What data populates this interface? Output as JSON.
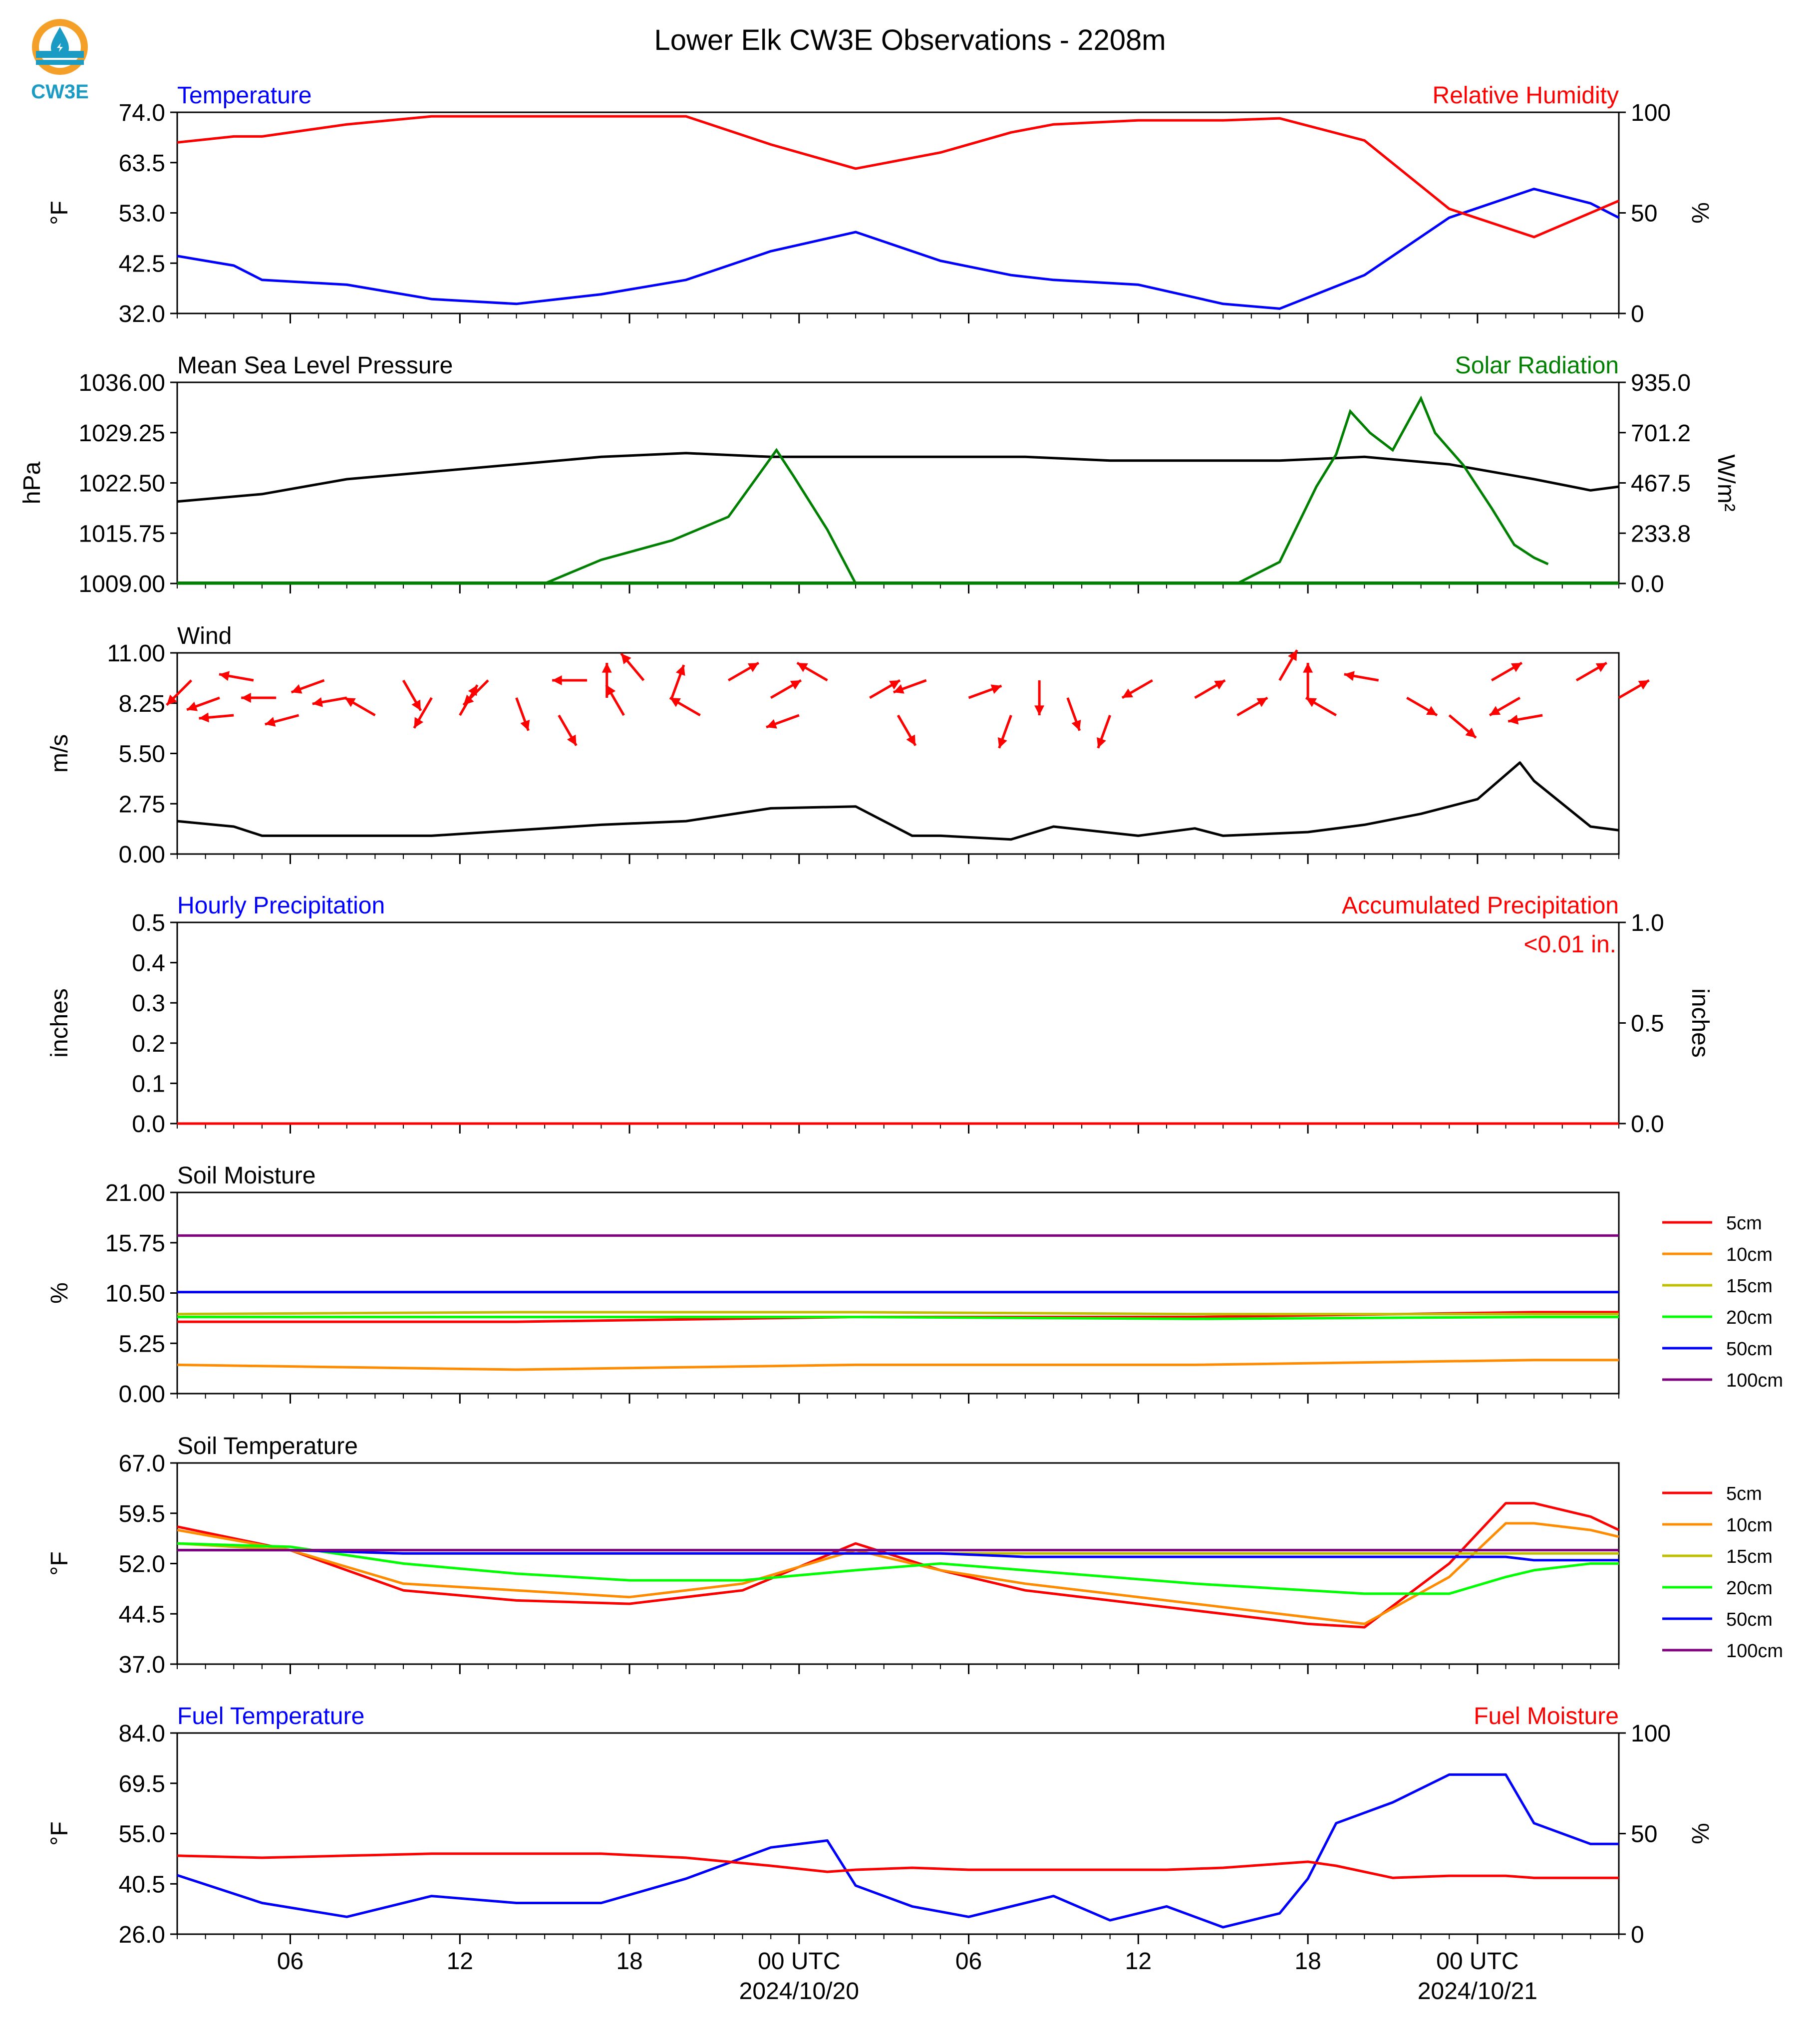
{
  "title": "Lower Elk CW3E Observations - 2208m",
  "logo_text": "CW3E",
  "x_axis": {
    "ticks": [
      "06",
      "12",
      "18",
      "00 UTC",
      "06",
      "12",
      "18",
      "00 UTC"
    ],
    "dates": [
      "2024/10/20",
      "2024/10/21"
    ]
  },
  "colors": {
    "blue": "#0000ff",
    "red": "#ff0000",
    "green": "#008000",
    "black": "#000000",
    "orange": "#ff8c00",
    "olive": "#bfbf00",
    "lime": "#00ff00",
    "purple": "#800080"
  },
  "chart_data": [
    {
      "type": "line",
      "title_left": "Temperature",
      "title_right": "Relative Humidity",
      "ylabel_left": "°F",
      "ylabel_right": "%",
      "left_ticks": [
        "74.0",
        "63.5",
        "53.0",
        "42.5",
        "32.0"
      ],
      "ylim_left": [
        32.0,
        74.0
      ],
      "right_ticks": [
        "100",
        "50",
        "0"
      ],
      "ylim_right": [
        0,
        100
      ],
      "x_hours": [
        0,
        2,
        3,
        6,
        9,
        12,
        15,
        18,
        21,
        24,
        27,
        29.5,
        31,
        34,
        37,
        39,
        42,
        45,
        48,
        50,
        51
      ],
      "series": [
        {
          "axis": "left",
          "color": "blue",
          "values": [
            44,
            42,
            39,
            38,
            35,
            34,
            36,
            39,
            45,
            49,
            43,
            40,
            39,
            38,
            34,
            33,
            40,
            52,
            58,
            55,
            52
          ]
        },
        {
          "axis": "right",
          "color": "red",
          "values": [
            85,
            88,
            88,
            94,
            98,
            98,
            98,
            98,
            84,
            72,
            80,
            90,
            94,
            96,
            96,
            97,
            86,
            52,
            38,
            50,
            56
          ]
        }
      ]
    },
    {
      "type": "line",
      "title_left": "Mean Sea Level Pressure",
      "title_right": "Solar Radiation",
      "ylabel_left": "hPa",
      "ylabel_right": "W/m²",
      "left_ticks": [
        "1036.00",
        "1029.25",
        "1022.50",
        "1015.75",
        "1009.00"
      ],
      "ylim_left": [
        1009.0,
        1036.0
      ],
      "right_ticks": [
        "935.0",
        "701.2",
        "467.5",
        "233.8",
        "0.0"
      ],
      "ylim_right": [
        0,
        935
      ],
      "x_hours": [
        0,
        3,
        6,
        9,
        12,
        15,
        18,
        21,
        24,
        27,
        30,
        33,
        36,
        39,
        42,
        45,
        48,
        50,
        51
      ],
      "series": [
        {
          "axis": "left",
          "color": "black",
          "values": [
            1020,
            1021,
            1023,
            1024,
            1025,
            1026,
            1026.5,
            1026,
            1026,
            1026,
            1026,
            1025.5,
            1025.5,
            1025.5,
            1026,
            1025,
            1023,
            1021.5,
            1022
          ]
        },
        {
          "axis": "right",
          "color": "green",
          "values": [
            0,
            0,
            0,
            0,
            0,
            0,
            0,
            0,
            0,
            0,
            0,
            0,
            0,
            0,
            0,
            0,
            0,
            0,
            0
          ]
        }
      ],
      "solar_points": [
        [
          13.0,
          0
        ],
        [
          15.0,
          110
        ],
        [
          17.5,
          200
        ],
        [
          19.5,
          310
        ],
        [
          21.2,
          620
        ],
        [
          21.8,
          500
        ],
        [
          23.0,
          250
        ],
        [
          24.0,
          0
        ],
        [
          37.5,
          0
        ],
        [
          39.0,
          100
        ],
        [
          40.3,
          450
        ],
        [
          41.0,
          600
        ],
        [
          41.5,
          800
        ],
        [
          42.2,
          700
        ],
        [
          43.0,
          620
        ],
        [
          44.0,
          860
        ],
        [
          44.5,
          700
        ],
        [
          45.5,
          550
        ],
        [
          46.5,
          350
        ],
        [
          47.3,
          180
        ],
        [
          48.0,
          120
        ],
        [
          48.5,
          90
        ]
      ]
    },
    {
      "type": "line",
      "title_left": "Wind",
      "ylabel_left": "m/s",
      "left_ticks": [
        "11.00",
        "8.25",
        "5.50",
        "2.75",
        "0.00"
      ],
      "ylim_left": [
        0,
        11
      ],
      "x_hours": [
        0,
        2,
        3,
        6,
        9,
        12,
        15,
        18,
        21,
        24,
        26,
        27,
        29.5,
        31,
        34,
        36,
        37,
        40,
        42,
        44,
        46,
        47.5,
        48,
        50,
        51
      ],
      "series": [
        {
          "axis": "left",
          "color": "black",
          "values": [
            1.8,
            1.5,
            1.0,
            1.0,
            1.0,
            1.3,
            1.6,
            1.8,
            2.5,
            2.6,
            1.0,
            1.0,
            0.8,
            1.5,
            1.0,
            1.4,
            1.0,
            1.2,
            1.6,
            2.2,
            3.0,
            5.0,
            4.0,
            1.5,
            1.3
          ]
        }
      ],
      "arrow_hours": [
        0.5,
        1.5,
        2.0,
        2.7,
        3.5,
        4.3,
        5.2,
        6.0,
        7.0,
        8.0,
        9.0,
        10.0,
        11.0,
        12.0,
        13.5,
        14.5,
        15.2,
        15.8,
        16.5,
        17.5,
        18.5,
        19.5,
        21.0,
        22.0,
        23.0,
        24.5,
        25.5,
        26.5,
        28.0,
        29.5,
        30.5,
        31.5,
        33.0,
        34.5,
        36.0,
        37.5,
        39.0,
        40.0,
        41.0,
        42.5,
        43.5,
        45.0,
        46.5,
        47.5,
        48.3,
        49.5,
        51.0
      ],
      "arrow_dirs": [
        225,
        250,
        265,
        280,
        270,
        255,
        250,
        260,
        300,
        150,
        210,
        30,
        225,
        160,
        150,
        270,
        0,
        330,
        320,
        20,
        300,
        60,
        60,
        250,
        300,
        60,
        150,
        250,
        70,
        200,
        180,
        160,
        200,
        240,
        60,
        60,
        30,
        0,
        300,
        280,
        120,
        130,
        60,
        240,
        260,
        60,
        60
      ]
    },
    {
      "type": "line",
      "title_left": "Hourly Precipitation",
      "title_right": "Accumulated Precipitation",
      "ylabel_left": "inches",
      "ylabel_right": "inches",
      "left_ticks": [
        "0.5",
        "0.4",
        "0.3",
        "0.2",
        "0.1",
        "0.0"
      ],
      "ylim_left": [
        0,
        0.5
      ],
      "right_ticks": [
        "1.0",
        "0.5",
        "0.0"
      ],
      "ylim_right": [
        0,
        1.0
      ],
      "annotation": "<0.01 in.",
      "x_hours": [
        0,
        51
      ],
      "series": [
        {
          "axis": "left",
          "color": "black",
          "values": [
            0,
            0
          ]
        },
        {
          "axis": "right",
          "color": "red",
          "values": [
            0,
            0
          ]
        }
      ]
    },
    {
      "type": "line",
      "title_left": "Soil Moisture",
      "ylabel_left": "%",
      "left_ticks": [
        "21.00",
        "15.75",
        "10.50",
        "5.25",
        "0.00"
      ],
      "ylim_left": [
        0,
        21
      ],
      "legend": [
        "5cm",
        "10cm",
        "15cm",
        "20cm",
        "50cm",
        "100cm"
      ],
      "x_hours": [
        0,
        12,
        24,
        36,
        48,
        51
      ],
      "series": [
        {
          "name": "5cm",
          "axis": "left",
          "color": "red",
          "values": [
            7.5,
            7.5,
            8.0,
            8.0,
            8.5,
            8.5
          ]
        },
        {
          "name": "10cm",
          "axis": "left",
          "color": "orange",
          "values": [
            3.0,
            2.5,
            3.0,
            3.0,
            3.5,
            3.5
          ]
        },
        {
          "name": "15cm",
          "axis": "left",
          "color": "olive",
          "values": [
            8.3,
            8.5,
            8.5,
            8.3,
            8.3,
            8.3
          ]
        },
        {
          "name": "20cm",
          "axis": "left",
          "color": "lime",
          "values": [
            8.0,
            8.0,
            8.0,
            7.8,
            8.0,
            8.0
          ]
        },
        {
          "name": "50cm",
          "axis": "left",
          "color": "blue",
          "values": [
            10.6,
            10.6,
            10.6,
            10.6,
            10.6,
            10.6
          ]
        },
        {
          "name": "100cm",
          "axis": "left",
          "color": "purple",
          "values": [
            16.5,
            16.5,
            16.5,
            16.5,
            16.5,
            16.5
          ]
        }
      ]
    },
    {
      "type": "line",
      "title_left": "Soil Temperature",
      "ylabel_left": "°F",
      "left_ticks": [
        "67.0",
        "59.5",
        "52.0",
        "44.5",
        "37.0"
      ],
      "ylim_left": [
        37,
        67
      ],
      "legend": [
        "5cm",
        "10cm",
        "15cm",
        "20cm",
        "50cm",
        "100cm"
      ],
      "x_hours": [
        0,
        4,
        8,
        12,
        16,
        20,
        24,
        27,
        30,
        36,
        40,
        42,
        45,
        47,
        48,
        50,
        51
      ],
      "series": [
        {
          "name": "5cm",
          "axis": "left",
          "color": "red",
          "values": [
            57.5,
            54,
            48,
            46.5,
            46,
            48,
            55,
            51,
            48,
            45,
            43,
            42.5,
            52,
            61,
            61,
            59,
            57
          ]
        },
        {
          "name": "10cm",
          "axis": "left",
          "color": "orange",
          "values": [
            57,
            54,
            49,
            48,
            47,
            49,
            54,
            51,
            49,
            46,
            44,
            43,
            50,
            58,
            58,
            57,
            56
          ]
        },
        {
          "name": "15cm",
          "axis": "left",
          "color": "olive",
          "values": [
            55,
            54,
            53.5,
            53.5,
            53.5,
            53.5,
            53.5,
            53.5,
            53.5,
            53.5,
            53.5,
            53.5,
            53.5,
            53.5,
            53.5,
            53.5,
            53.5
          ]
        },
        {
          "name": "20cm",
          "axis": "left",
          "color": "lime",
          "values": [
            55,
            54.5,
            52,
            50.5,
            49.5,
            49.5,
            51,
            52,
            51,
            49,
            48,
            47.5,
            47.5,
            50,
            51,
            52,
            52
          ]
        },
        {
          "name": "50cm",
          "axis": "left",
          "color": "blue",
          "values": [
            54,
            54,
            53.5,
            53.5,
            53.5,
            53.5,
            53.5,
            53.5,
            53,
            53,
            53,
            53,
            53,
            53,
            52.5,
            52.5,
            52.5
          ]
        },
        {
          "name": "100cm",
          "axis": "left",
          "color": "purple",
          "values": [
            54,
            54,
            54,
            54,
            54,
            54,
            54,
            54,
            54,
            54,
            54,
            54,
            54,
            54,
            54,
            54,
            54
          ]
        }
      ]
    },
    {
      "type": "line",
      "title_left": "Fuel Temperature",
      "title_right": "Fuel Moisture",
      "ylabel_left": "°F",
      "ylabel_right": "%",
      "left_ticks": [
        "84.0",
        "69.5",
        "55.0",
        "40.5",
        "26.0"
      ],
      "ylim_left": [
        26,
        84
      ],
      "right_ticks": [
        "100",
        "50",
        "0"
      ],
      "ylim_right": [
        0,
        100
      ],
      "x_hours": [
        0,
        3,
        6,
        9,
        12,
        15,
        18,
        21,
        23,
        24,
        26,
        28,
        31,
        33,
        35,
        37,
        39,
        40,
        41,
        43,
        45,
        47,
        48,
        50,
        51
      ],
      "series": [
        {
          "axis": "left",
          "color": "blue",
          "values": [
            43,
            35,
            31,
            37,
            35,
            35,
            42,
            51,
            53,
            40,
            34,
            31,
            37,
            30,
            34,
            28,
            32,
            42,
            58,
            64,
            72,
            72,
            58,
            52,
            52
          ]
        },
        {
          "axis": "right",
          "color": "red",
          "values": [
            39,
            38,
            39,
            40,
            40,
            40,
            38,
            34,
            31,
            32,
            33,
            32,
            32,
            32,
            32,
            33,
            35,
            36,
            34,
            28,
            29,
            29,
            28,
            28,
            28
          ]
        }
      ]
    }
  ]
}
